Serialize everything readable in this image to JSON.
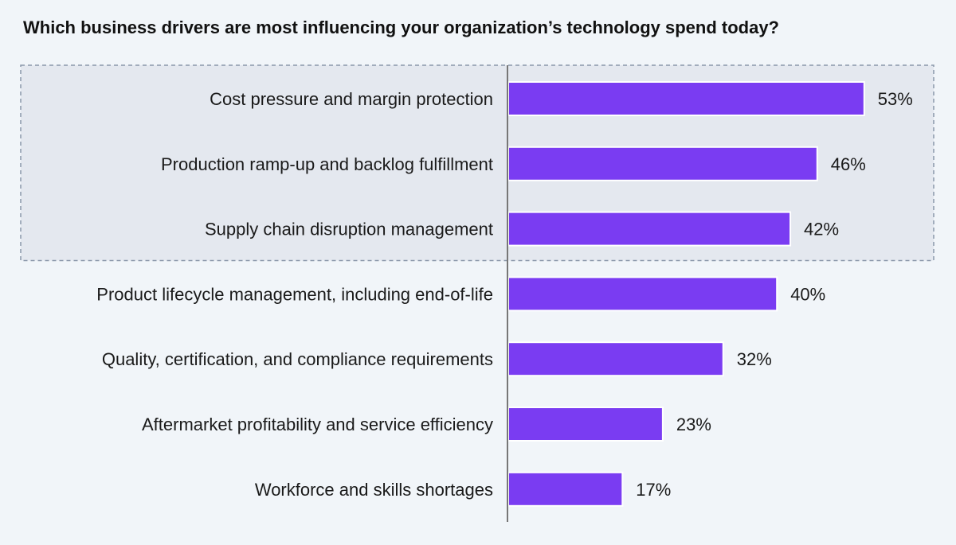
{
  "chart_data": {
    "type": "bar",
    "orientation": "horizontal",
    "title": "Which business drivers are most influencing your organization’s technology spend today?",
    "categories": [
      "Cost pressure and margin protection",
      "Production ramp-up and backlog fulfillment",
      "Supply chain disruption management",
      "Product lifecycle management, including end-of-life",
      "Quality, certification, and compliance requirements",
      "Aftermarket profitability and service efficiency",
      "Workforce and skills shortages"
    ],
    "values": [
      53,
      46,
      42,
      40,
      32,
      23,
      17
    ],
    "value_labels": [
      "53%",
      "46%",
      "42%",
      "40%",
      "32%",
      "23%",
      "17%"
    ],
    "highlighted_count": 3,
    "xlabel": "",
    "ylabel": "",
    "grid": false,
    "colors": {
      "bar": "#7a3cf2",
      "bar_stroke": "#ffffff",
      "axis": "#777777",
      "highlight_fill": "#e4e8ef",
      "highlight_border": "#8a97aa",
      "background": "#f1f5f9"
    }
  }
}
